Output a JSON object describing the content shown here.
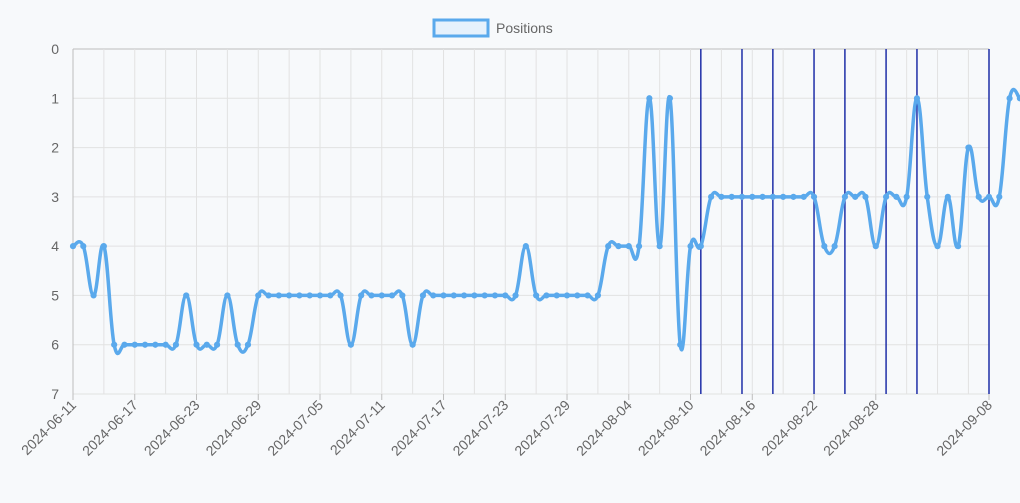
{
  "chart_data": {
    "type": "line",
    "legend": {
      "label": "Positions",
      "placement": "top-center"
    },
    "colors": {
      "series": "#5aa9ec",
      "markers": "#1f2fa8",
      "grid": "#e2e2e2"
    },
    "y_axis": {
      "reversed": true,
      "ylim": [
        0,
        7
      ],
      "ticks": [
        "0",
        "1",
        "2",
        "3",
        "4",
        "5",
        "6",
        "7"
      ]
    },
    "x_axis": {
      "range": [
        "2024-06-11",
        "2024-09-08"
      ],
      "tick_labels": [
        "2024-06-11",
        "2024-06-17",
        "2024-06-23",
        "2024-06-29",
        "2024-07-05",
        "2024-07-11",
        "2024-07-17",
        "2024-07-23",
        "2024-07-29",
        "2024-08-04",
        "2024-08-10",
        "2024-08-16",
        "2024-08-22",
        "2024-08-28",
        "2024-09-08"
      ],
      "grid": true
    },
    "series": [
      {
        "name": "Positions",
        "points": [
          [
            "2024-06-11",
            4
          ],
          [
            "2024-06-12",
            4
          ],
          [
            "2024-06-13",
            5
          ],
          [
            "2024-06-14",
            4
          ],
          [
            "2024-06-15",
            6
          ],
          [
            "2024-06-16",
            6
          ],
          [
            "2024-06-17",
            6
          ],
          [
            "2024-06-18",
            6
          ],
          [
            "2024-06-19",
            6
          ],
          [
            "2024-06-20",
            6
          ],
          [
            "2024-06-21",
            6
          ],
          [
            "2024-06-22",
            5
          ],
          [
            "2024-06-23",
            6
          ],
          [
            "2024-06-24",
            6
          ],
          [
            "2024-06-25",
            6
          ],
          [
            "2024-06-26",
            5
          ],
          [
            "2024-06-27",
            6
          ],
          [
            "2024-06-28",
            6
          ],
          [
            "2024-06-29",
            5
          ],
          [
            "2024-06-30",
            5
          ],
          [
            "2024-07-01",
            5
          ],
          [
            "2024-07-02",
            5
          ],
          [
            "2024-07-03",
            5
          ],
          [
            "2024-07-04",
            5
          ],
          [
            "2024-07-05",
            5
          ],
          [
            "2024-07-06",
            5
          ],
          [
            "2024-07-07",
            5
          ],
          [
            "2024-07-08",
            6
          ],
          [
            "2024-07-09",
            5
          ],
          [
            "2024-07-10",
            5
          ],
          [
            "2024-07-11",
            5
          ],
          [
            "2024-07-12",
            5
          ],
          [
            "2024-07-13",
            5
          ],
          [
            "2024-07-14",
            6
          ],
          [
            "2024-07-15",
            5
          ],
          [
            "2024-07-16",
            5
          ],
          [
            "2024-07-17",
            5
          ],
          [
            "2024-07-18",
            5
          ],
          [
            "2024-07-19",
            5
          ],
          [
            "2024-07-20",
            5
          ],
          [
            "2024-07-21",
            5
          ],
          [
            "2024-07-22",
            5
          ],
          [
            "2024-07-23",
            5
          ],
          [
            "2024-07-24",
            5
          ],
          [
            "2024-07-25",
            4
          ],
          [
            "2024-07-26",
            5
          ],
          [
            "2024-07-27",
            5
          ],
          [
            "2024-07-28",
            5
          ],
          [
            "2024-07-29",
            5
          ],
          [
            "2024-07-30",
            5
          ],
          [
            "2024-07-31",
            5
          ],
          [
            "2024-08-01",
            5
          ],
          [
            "2024-08-02",
            4
          ],
          [
            "2024-08-03",
            4
          ],
          [
            "2024-08-04",
            4
          ],
          [
            "2024-08-05",
            4
          ],
          [
            "2024-08-06",
            1
          ],
          [
            "2024-08-07",
            4
          ],
          [
            "2024-08-08",
            1
          ],
          [
            "2024-08-09",
            6
          ],
          [
            "2024-08-10",
            4
          ],
          [
            "2024-08-11",
            4
          ],
          [
            "2024-08-12",
            3
          ],
          [
            "2024-08-13",
            3
          ],
          [
            "2024-08-14",
            3
          ],
          [
            "2024-08-15",
            3
          ],
          [
            "2024-08-16",
            3
          ],
          [
            "2024-08-17",
            3
          ],
          [
            "2024-08-18",
            3
          ],
          [
            "2024-08-19",
            3
          ],
          [
            "2024-08-20",
            3
          ],
          [
            "2024-08-21",
            3
          ],
          [
            "2024-08-22",
            3
          ],
          [
            "2024-08-23",
            4
          ],
          [
            "2024-08-24",
            4
          ],
          [
            "2024-08-25",
            3
          ],
          [
            "2024-08-26",
            3
          ],
          [
            "2024-08-27",
            3
          ],
          [
            "2024-08-28",
            4
          ],
          [
            "2024-08-29",
            3
          ],
          [
            "2024-08-30",
            3
          ],
          [
            "2024-08-31",
            3
          ],
          [
            "2024-09-01",
            1
          ],
          [
            "2024-09-02",
            3
          ],
          [
            "2024-09-03",
            4
          ],
          [
            "2024-09-04",
            3
          ],
          [
            "2024-09-05",
            4
          ],
          [
            "2024-09-06",
            2
          ],
          [
            "2024-09-07",
            3
          ],
          [
            "2024-09-08",
            3
          ],
          [
            "2024-09-09",
            3
          ],
          [
            "2024-09-10",
            1
          ],
          [
            "2024-09-11",
            1
          ]
        ]
      }
    ],
    "vertical_markers": [
      "2024-08-11",
      "2024-08-15",
      "2024-08-18",
      "2024-08-22",
      "2024-08-25",
      "2024-08-29",
      "2024-09-01",
      "2024-09-08"
    ]
  }
}
